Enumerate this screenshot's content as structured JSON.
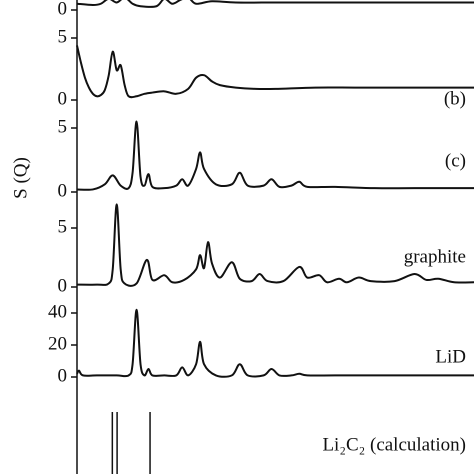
{
  "chart_data": {
    "type": "stacked-line",
    "ylabel": "S (Q)",
    "xlim": [
      0,
      100
    ],
    "color": "#111111",
    "panels": [
      {
        "type": "line",
        "ylim": [
          0,
          2
        ],
        "yticks": [
          0
        ],
        "x": [
          0,
          4,
          6,
          8,
          10,
          12,
          14,
          16,
          20,
          22,
          24,
          26,
          28,
          30,
          34,
          40,
          50,
          60,
          80,
          100
        ],
        "values": [
          0.5,
          0.4,
          0.5,
          0.9,
          0.6,
          1.0,
          0.5,
          0.3,
          0.3,
          0.9,
          0.5,
          0.8,
          1.0,
          0.5,
          0.7,
          0.6,
          0.6,
          0.6,
          0.6,
          0.6
        ]
      },
      {
        "type": "line",
        "label": "(b)",
        "ylim": [
          0,
          7
        ],
        "yticks": [
          0,
          5
        ],
        "x": [
          0,
          1,
          2,
          3,
          4,
          5,
          6,
          7,
          8,
          9,
          10,
          11,
          12,
          13,
          15,
          17,
          19,
          22,
          25,
          28,
          30,
          32,
          34,
          36,
          40,
          45,
          50,
          60,
          70,
          80,
          90,
          100
        ],
        "values": [
          4.4,
          3.0,
          1.8,
          1.0,
          0.5,
          0.3,
          0.4,
          0.8,
          2.0,
          3.9,
          2.4,
          2.8,
          1.2,
          0.3,
          0.3,
          0.5,
          0.6,
          0.7,
          0.5,
          0.9,
          1.8,
          2.0,
          1.5,
          1.2,
          1.0,
          0.9,
          0.9,
          1.0,
          1.0,
          1.0,
          1.0,
          1.0
        ]
      },
      {
        "type": "line",
        "label": "(c)",
        "ylim": [
          0,
          7
        ],
        "yticks": [
          0,
          5
        ],
        "x": [
          0,
          4,
          7,
          9,
          11,
          13,
          14,
          15,
          16,
          17,
          18,
          19,
          22,
          25,
          26.5,
          28,
          30,
          31,
          32,
          35,
          39,
          41,
          43,
          47,
          49,
          51,
          54,
          56,
          58,
          65,
          75,
          85,
          100
        ],
        "values": [
          0.2,
          0.2,
          0.6,
          1.3,
          0.5,
          0.3,
          1.5,
          5.5,
          1.2,
          0.5,
          1.4,
          0.4,
          0.3,
          0.5,
          1.0,
          0.5,
          1.8,
          3.1,
          1.8,
          0.6,
          0.6,
          1.5,
          0.5,
          0.5,
          1.0,
          0.4,
          0.5,
          0.8,
          0.4,
          0.4,
          0.3,
          0.3,
          0.3
        ]
      },
      {
        "type": "line",
        "label": "graphite",
        "ylim": [
          0,
          8
        ],
        "yticks": [
          0,
          5
        ],
        "x": [
          0,
          5,
          8,
          9,
          10,
          11,
          12,
          15,
          17.6,
          19,
          22,
          24,
          27,
          30,
          31,
          32,
          33,
          34,
          36,
          39,
          41,
          44,
          46,
          48,
          52,
          56,
          58,
          61,
          63,
          66,
          68,
          71,
          74,
          80,
          85,
          88,
          91,
          95,
          100
        ],
        "values": [
          0.2,
          0.2,
          0.3,
          1.5,
          7.0,
          1.5,
          0.3,
          0.3,
          2.3,
          0.6,
          1.0,
          0.4,
          0.6,
          1.5,
          2.7,
          1.6,
          3.8,
          2.0,
          0.8,
          2.1,
          0.7,
          0.5,
          1.1,
          0.5,
          0.5,
          1.7,
          0.8,
          1.0,
          0.4,
          0.7,
          0.4,
          0.8,
          0.5,
          0.5,
          1.1,
          0.6,
          0.7,
          0.4,
          0.4
        ]
      },
      {
        "type": "line",
        "label": "LiD",
        "ylim": [
          0,
          45
        ],
        "yticks": [
          0,
          20,
          40
        ],
        "x": [
          0,
          0.5,
          1.5,
          5,
          10,
          13,
          14,
          15,
          16,
          17,
          18,
          19,
          22,
          25,
          26.5,
          28,
          30,
          31,
          32,
          35,
          39,
          41,
          43,
          47,
          49,
          51,
          54,
          56,
          58,
          65,
          75,
          85,
          100
        ],
        "values": [
          2,
          4,
          1,
          1,
          1,
          1,
          8,
          42,
          8,
          1,
          5,
          1,
          1,
          1,
          6,
          1,
          8,
          22,
          8,
          1,
          1,
          8,
          1,
          1,
          5,
          1,
          1,
          2,
          1,
          1,
          1,
          1,
          1
        ]
      }
    ],
    "sticks": {
      "label": "Li₂C₂ (calculation)",
      "x": [
        8.9,
        10.1,
        18.4
      ]
    }
  }
}
